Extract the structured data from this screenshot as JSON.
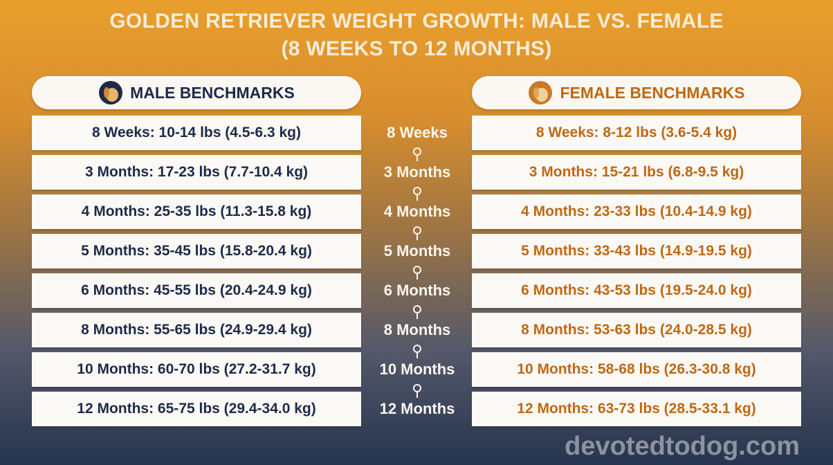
{
  "header": {
    "title": [
      "GOLDEN RETRIEVER WEIGHT GROWTH: MALE VS. FEMALE",
      "(8 WEEKS TO 12 MONTHS)"
    ]
  },
  "columns": {
    "male": "MALE BENCHMARKS",
    "female": "FEMALE BENCHMARKS"
  },
  "rows": [
    {
      "age": "8 Weeks",
      "male": "8 Weeks: 10-14 lbs (4.5-6.3 kg)",
      "female": "8 Weeks: 8-12 lbs (3.6-5.4 kg)"
    },
    {
      "age": "3 Months",
      "male": "3 Months: 17-23 lbs (7.7-10.4 kg)",
      "female": "3 Months: 15-21 lbs (6.8-9.5 kg)"
    },
    {
      "age": "4 Months",
      "male": "4 Months: 25-35 lbs (11.3-15.8 kg)",
      "female": "4 Months: 23-33 lbs (10.4-14.9 kg)"
    },
    {
      "age": "5 Months",
      "male": "5 Months: 35-45 lbs (15.8-20.4 kg)",
      "female": "5 Months: 33-43 lbs (14.9-19.5 kg)"
    },
    {
      "age": "6 Months",
      "male": "6 Months: 45-55 lbs (20.4-24.9 kg)",
      "female": "6 Months: 43-53 lbs (19.5-24.0 kg)"
    },
    {
      "age": "8 Months",
      "male": "8 Months: 55-65 lbs (24.9-29.4 kg)",
      "female": "8 Months: 53-63 lbs (24.0-28.5 kg)"
    },
    {
      "age": "10 Months",
      "male": "10 Months: 60-70 lbs (27.2-31.7 kg)",
      "female": "10 Months: 58-68 lbs (26.3-30.8 kg)"
    },
    {
      "age": "12 Months",
      "male": "12 Months: 65-75 lbs (29.4-34.0 kg)",
      "female": "12 Months: 63-73 lbs (28.5-33.1 kg)"
    }
  ],
  "watermark": "devotedtodog.com"
}
